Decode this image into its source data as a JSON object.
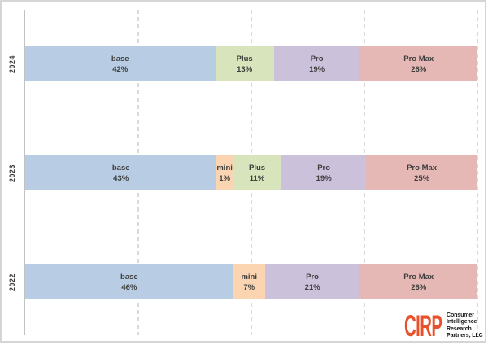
{
  "chart_data": {
    "type": "bar",
    "orientation": "horizontal",
    "stacked": true,
    "title": "",
    "categories": [
      "2024",
      "2023",
      "2022"
    ],
    "xlim": [
      0,
      100
    ],
    "unit": "%",
    "gridlines_pct": [
      25,
      50,
      75,
      100
    ],
    "grid_style": "dashed",
    "legend_position": "none",
    "series_colors": {
      "base": "#b8cce4",
      "mini": "#fbd5b2",
      "Plus": "#d7e4bc",
      "Pro": "#ccc1db",
      "Pro Max": "#e6b8b5"
    },
    "rows": [
      {
        "category": "2024",
        "segments": [
          {
            "label": "base",
            "pct": 42
          },
          {
            "label": "Plus",
            "pct": 13
          },
          {
            "label": "Pro",
            "pct": 19
          },
          {
            "label": "Pro Max",
            "pct": 26
          }
        ]
      },
      {
        "category": "2023",
        "segments": [
          {
            "label": "base",
            "pct": 43
          },
          {
            "label": "mini",
            "pct": 1
          },
          {
            "label": "Plus",
            "pct": 11
          },
          {
            "label": "Pro",
            "pct": 19
          },
          {
            "label": "Pro Max",
            "pct": 25
          }
        ]
      },
      {
        "category": "2022",
        "segments": [
          {
            "label": "base",
            "pct": 46
          },
          {
            "label": "mini",
            "pct": 7
          },
          {
            "label": "Pro",
            "pct": 21
          },
          {
            "label": "Pro Max",
            "pct": 26
          }
        ]
      }
    ]
  },
  "logo": {
    "brand": "CIRP",
    "brand_color": "#e8512b",
    "lines": [
      "Consumer",
      "Intelligence",
      "Research",
      "Partners, LLC"
    ]
  },
  "colors": {
    "text": "#3f3f3f",
    "axis": "#c2c2c2",
    "gridline": "#dadada",
    "border": "#d5d5d5",
    "background": "#ffffff"
  }
}
